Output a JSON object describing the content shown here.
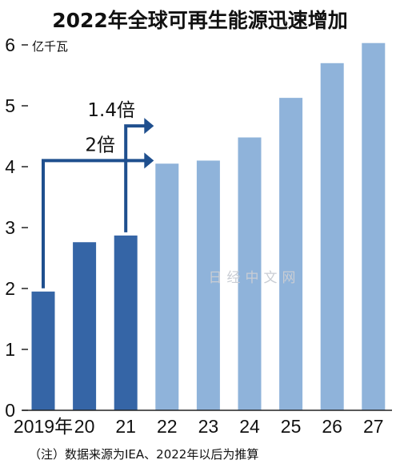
{
  "chart_data": {
    "type": "bar",
    "title": "2022年全球可再生能源迅速增加",
    "ylabel": "亿千瓦",
    "xlabel": "",
    "categories": [
      "2019年",
      "20",
      "21",
      "22",
      "23",
      "24",
      "25",
      "26",
      "27"
    ],
    "values": [
      1.95,
      2.76,
      2.87,
      4.05,
      4.1,
      4.48,
      5.13,
      5.7,
      6.03
    ],
    "bar_kind": [
      "actual",
      "actual",
      "actual",
      "forecast",
      "forecast",
      "forecast",
      "forecast",
      "forecast",
      "forecast"
    ],
    "ylim": [
      0,
      6
    ],
    "yticks": [
      0,
      1,
      2,
      3,
      4,
      5,
      6
    ],
    "grid": false,
    "colors": {
      "actual": "#3565a6",
      "forecast": "#8fb3da",
      "arrow": "#1f4f8e"
    },
    "annotations": [
      {
        "label": "2倍",
        "from_category": "2019年",
        "to_category": "22"
      },
      {
        "label": "1.4倍",
        "from_category": "21",
        "to_category": "22"
      }
    ],
    "note": "（注）数据来源为IEA、2022年以后为推算"
  },
  "watermark": "日经中文网"
}
